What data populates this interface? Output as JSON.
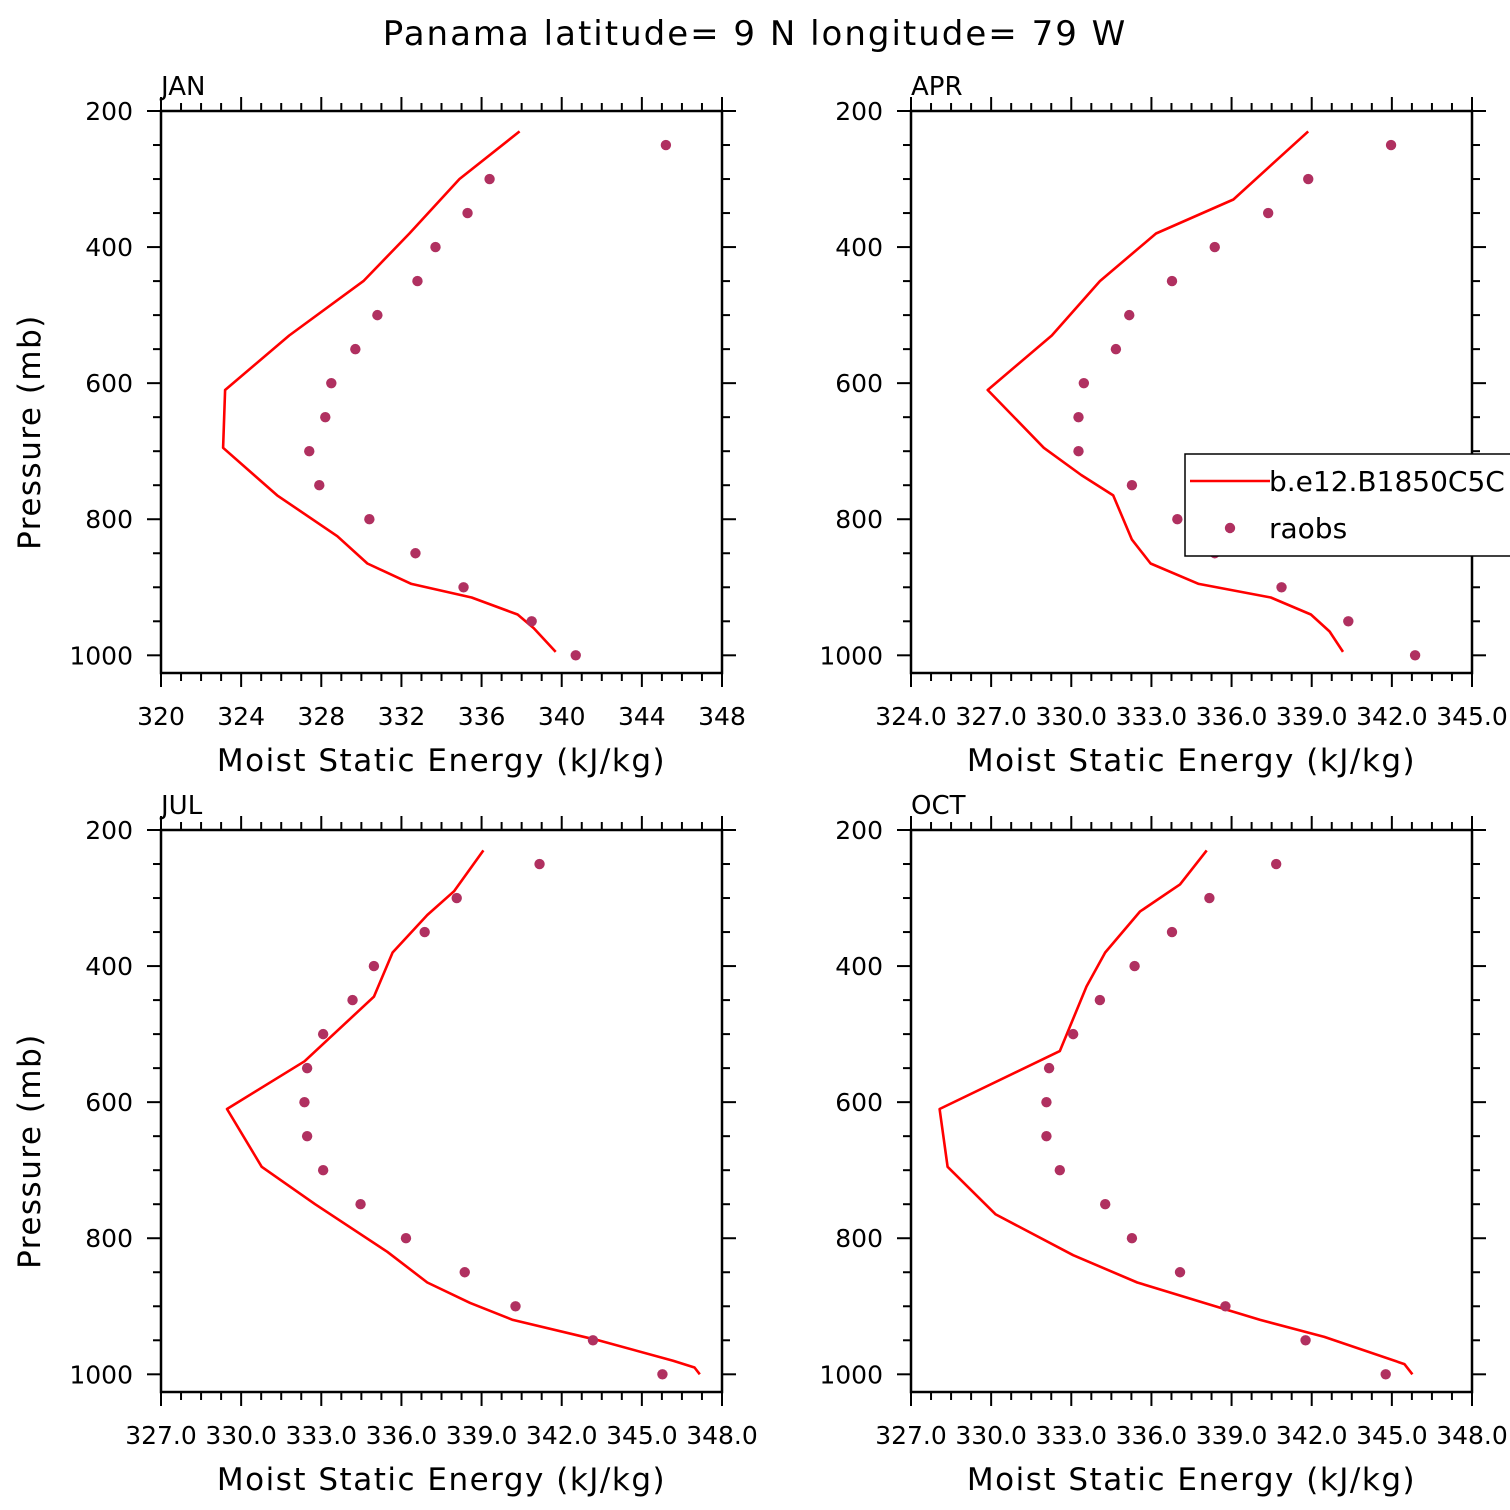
{
  "title": "Panama  latitude= 9 N longitude= 79 W",
  "colors": {
    "model": "#ff0000",
    "obs": "#b03060",
    "axes": "#000000",
    "background": "#ffffff"
  },
  "legend": {
    "placement": "right of APR panel",
    "entries": [
      "b.e12.B1850C5C",
      "raobs"
    ]
  },
  "chart_data": [
    {
      "type": "line",
      "panel": "JAN",
      "xlabel": "Moist Static Energy (kJ/kg)",
      "ylabel": "Pressure (mb)",
      "xlim": [
        320,
        348
      ],
      "ylim": [
        1000,
        200
      ],
      "yscale": "linear-inverted",
      "x_tick_labels": [
        "320",
        "324",
        "328",
        "332",
        "336",
        "340",
        "344",
        "348"
      ],
      "y_tick_labels": [
        "200",
        "400",
        "600",
        "800",
        "1000"
      ],
      "series": [
        {
          "name": "b.e12.B1850C5C",
          "kind": "line",
          "points": [
            [
              337.9,
              230
            ],
            [
              334.9,
              300
            ],
            [
              332.4,
              380
            ],
            [
              330.1,
              450
            ],
            [
              326.4,
              530
            ],
            [
              323.2,
              610
            ],
            [
              323.1,
              695
            ],
            [
              325.8,
              765
            ],
            [
              328.8,
              825
            ],
            [
              330.3,
              865
            ],
            [
              332.5,
              895
            ],
            [
              335.5,
              915
            ],
            [
              337.8,
              940
            ],
            [
              338.6,
              960
            ],
            [
              339.7,
              995
            ]
          ]
        },
        {
          "name": "raobs",
          "kind": "scatter",
          "points": [
            [
              345.2,
              250
            ],
            [
              336.4,
              300
            ],
            [
              335.3,
              350
            ],
            [
              333.7,
              400
            ],
            [
              332.8,
              450
            ],
            [
              330.8,
              500
            ],
            [
              329.7,
              550
            ],
            [
              328.5,
              600
            ],
            [
              328.2,
              650
            ],
            [
              327.4,
              700
            ],
            [
              327.9,
              750
            ],
            [
              330.4,
              800
            ],
            [
              332.7,
              850
            ],
            [
              335.1,
              900
            ],
            [
              338.5,
              950
            ],
            [
              340.7,
              1000
            ]
          ]
        }
      ]
    },
    {
      "type": "line",
      "panel": "APR",
      "xlabel": "Moist Static Energy (kJ/kg)",
      "ylabel": "",
      "xlim": [
        324.03,
        345.03
      ],
      "ylim": [
        1000,
        200
      ],
      "yscale": "linear-inverted",
      "x_tick_labels": [
        "324.0",
        "327.0",
        "330.0",
        "333.0",
        "336.0",
        "339.0",
        "342.0",
        "345.0"
      ],
      "y_tick_labels": [
        "200",
        "400",
        "600",
        "800",
        "1000"
      ],
      "series": [
        {
          "name": "b.e12.B1850C5C",
          "kind": "line",
          "points": [
            [
              338.9,
              230
            ],
            [
              336.1,
              330
            ],
            [
              333.2,
              380
            ],
            [
              331.1,
              450
            ],
            [
              329.3,
              530
            ],
            [
              326.9,
              610
            ],
            [
              329.0,
              695
            ],
            [
              330.4,
              735
            ],
            [
              331.6,
              765
            ],
            [
              332.3,
              830
            ],
            [
              333.0,
              865
            ],
            [
              334.8,
              895
            ],
            [
              337.5,
              915
            ],
            [
              339.0,
              940
            ],
            [
              339.7,
              965
            ],
            [
              340.2,
              995
            ]
          ]
        },
        {
          "name": "raobs",
          "kind": "scatter",
          "points": [
            [
              342.0,
              250
            ],
            [
              338.9,
              300
            ],
            [
              337.4,
              350
            ],
            [
              335.4,
              400
            ],
            [
              333.8,
              450
            ],
            [
              332.2,
              500
            ],
            [
              331.7,
              550
            ],
            [
              330.5,
              600
            ],
            [
              330.3,
              650
            ],
            [
              330.3,
              700
            ],
            [
              332.3,
              750
            ],
            [
              334.0,
              800
            ],
            [
              335.4,
              850
            ],
            [
              337.9,
              900
            ],
            [
              340.4,
              950
            ],
            [
              342.9,
              1000
            ]
          ]
        }
      ]
    },
    {
      "type": "line",
      "panel": "JUL",
      "xlabel": "Moist Static Energy (kJ/kg)",
      "ylabel": "Pressure (mb)",
      "xlim": [
        327.03,
        348.03
      ],
      "ylim": [
        1000,
        200
      ],
      "yscale": "linear-inverted",
      "x_tick_labels": [
        "327.0",
        "330.0",
        "333.0",
        "336.0",
        "339.0",
        "342.0",
        "345.0",
        "348.0"
      ],
      "y_tick_labels": [
        "200",
        "400",
        "600",
        "800",
        "1000"
      ],
      "series": [
        {
          "name": "b.e12.B1850C5C",
          "kind": "line",
          "points": [
            [
              339.1,
              230
            ],
            [
              338.0,
              290
            ],
            [
              337.0,
              325
            ],
            [
              335.7,
              380
            ],
            [
              335.0,
              445
            ],
            [
              332.4,
              540
            ],
            [
              329.5,
              610
            ],
            [
              330.8,
              695
            ],
            [
              332.8,
              750
            ],
            [
              335.5,
              820
            ],
            [
              337.0,
              865
            ],
            [
              338.6,
              895
            ],
            [
              340.2,
              920
            ],
            [
              343.4,
              950
            ],
            [
              346.2,
              980
            ],
            [
              347.0,
              990
            ],
            [
              347.2,
              1000
            ]
          ]
        },
        {
          "name": "raobs",
          "kind": "scatter",
          "points": [
            [
              341.2,
              250
            ],
            [
              338.1,
              300
            ],
            [
              336.9,
              350
            ],
            [
              335.0,
              400
            ],
            [
              334.2,
              450
            ],
            [
              333.1,
              500
            ],
            [
              332.5,
              550
            ],
            [
              332.4,
              600
            ],
            [
              332.5,
              650
            ],
            [
              333.1,
              700
            ],
            [
              334.5,
              750
            ],
            [
              336.2,
              800
            ],
            [
              338.4,
              850
            ],
            [
              340.3,
              900
            ],
            [
              343.2,
              950
            ],
            [
              345.8,
              1000
            ]
          ]
        }
      ]
    },
    {
      "type": "line",
      "panel": "OCT",
      "xlabel": "Moist Static Energy (kJ/kg)",
      "ylabel": "",
      "xlim": [
        327.03,
        348.03
      ],
      "ylim": [
        1000,
        200
      ],
      "yscale": "linear-inverted",
      "x_tick_labels": [
        "327.0",
        "330.0",
        "333.0",
        "336.0",
        "339.0",
        "342.0",
        "345.0",
        "348.0"
      ],
      "y_tick_labels": [
        "200",
        "400",
        "600",
        "800",
        "1000"
      ],
      "series": [
        {
          "name": "b.e12.B1850C5C",
          "kind": "line",
          "points": [
            [
              338.1,
              230
            ],
            [
              337.1,
              280
            ],
            [
              335.6,
              320
            ],
            [
              334.3,
              380
            ],
            [
              333.6,
              430
            ],
            [
              332.6,
              525
            ],
            [
              328.1,
              610
            ],
            [
              328.4,
              695
            ],
            [
              330.2,
              765
            ],
            [
              333.1,
              825
            ],
            [
              335.5,
              865
            ],
            [
              338.0,
              895
            ],
            [
              340.1,
              920
            ],
            [
              342.5,
              945
            ],
            [
              345.5,
              985
            ],
            [
              345.8,
              1000
            ]
          ]
        },
        {
          "name": "raobs",
          "kind": "scatter",
          "points": [
            [
              340.7,
              250
            ],
            [
              338.2,
              300
            ],
            [
              336.8,
              350
            ],
            [
              335.4,
              400
            ],
            [
              334.1,
              450
            ],
            [
              333.1,
              500
            ],
            [
              332.2,
              550
            ],
            [
              332.1,
              600
            ],
            [
              332.1,
              650
            ],
            [
              332.6,
              700
            ],
            [
              334.3,
              750
            ],
            [
              335.3,
              800
            ],
            [
              337.1,
              850
            ],
            [
              338.8,
              900
            ],
            [
              341.8,
              950
            ],
            [
              344.8,
              1000
            ]
          ]
        }
      ]
    }
  ]
}
